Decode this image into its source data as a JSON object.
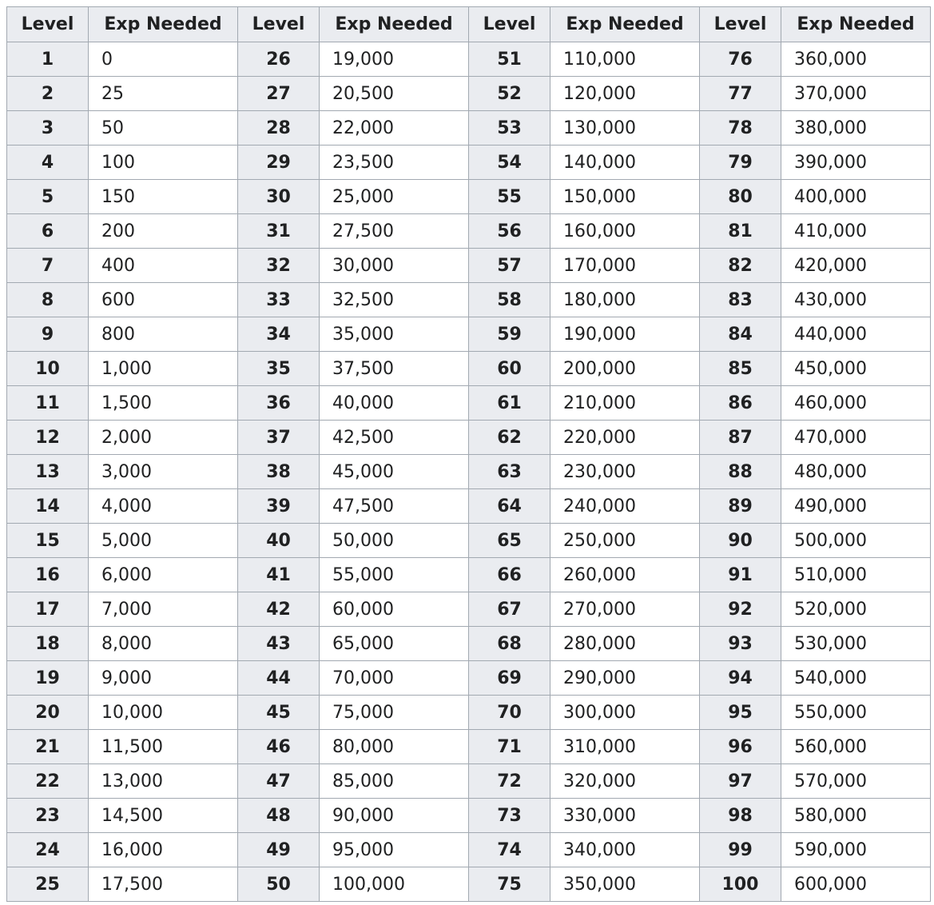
{
  "table": {
    "headers": [
      "Level",
      "Exp Needed",
      "Level",
      "Exp Needed",
      "Level",
      "Exp Needed",
      "Level",
      "Exp Needed"
    ],
    "rows": [
      [
        "1",
        "0",
        "26",
        "19,000",
        "51",
        "110,000",
        "76",
        "360,000"
      ],
      [
        "2",
        "25",
        "27",
        "20,500",
        "52",
        "120,000",
        "77",
        "370,000"
      ],
      [
        "3",
        "50",
        "28",
        "22,000",
        "53",
        "130,000",
        "78",
        "380,000"
      ],
      [
        "4",
        "100",
        "29",
        "23,500",
        "54",
        "140,000",
        "79",
        "390,000"
      ],
      [
        "5",
        "150",
        "30",
        "25,000",
        "55",
        "150,000",
        "80",
        "400,000"
      ],
      [
        "6",
        "200",
        "31",
        "27,500",
        "56",
        "160,000",
        "81",
        "410,000"
      ],
      [
        "7",
        "400",
        "32",
        "30,000",
        "57",
        "170,000",
        "82",
        "420,000"
      ],
      [
        "8",
        "600",
        "33",
        "32,500",
        "58",
        "180,000",
        "83",
        "430,000"
      ],
      [
        "9",
        "800",
        "34",
        "35,000",
        "59",
        "190,000",
        "84",
        "440,000"
      ],
      [
        "10",
        "1,000",
        "35",
        "37,500",
        "60",
        "200,000",
        "85",
        "450,000"
      ],
      [
        "11",
        "1,500",
        "36",
        "40,000",
        "61",
        "210,000",
        "86",
        "460,000"
      ],
      [
        "12",
        "2,000",
        "37",
        "42,500",
        "62",
        "220,000",
        "87",
        "470,000"
      ],
      [
        "13",
        "3,000",
        "38",
        "45,000",
        "63",
        "230,000",
        "88",
        "480,000"
      ],
      [
        "14",
        "4,000",
        "39",
        "47,500",
        "64",
        "240,000",
        "89",
        "490,000"
      ],
      [
        "15",
        "5,000",
        "40",
        "50,000",
        "65",
        "250,000",
        "90",
        "500,000"
      ],
      [
        "16",
        "6,000",
        "41",
        "55,000",
        "66",
        "260,000",
        "91",
        "510,000"
      ],
      [
        "17",
        "7,000",
        "42",
        "60,000",
        "67",
        "270,000",
        "92",
        "520,000"
      ],
      [
        "18",
        "8,000",
        "43",
        "65,000",
        "68",
        "280,000",
        "93",
        "530,000"
      ],
      [
        "19",
        "9,000",
        "44",
        "70,000",
        "69",
        "290,000",
        "94",
        "540,000"
      ],
      [
        "20",
        "10,000",
        "45",
        "75,000",
        "70",
        "300,000",
        "95",
        "550,000"
      ],
      [
        "21",
        "11,500",
        "46",
        "80,000",
        "71",
        "310,000",
        "96",
        "560,000"
      ],
      [
        "22",
        "13,000",
        "47",
        "85,000",
        "72",
        "320,000",
        "97",
        "570,000"
      ],
      [
        "23",
        "14,500",
        "48",
        "90,000",
        "73",
        "330,000",
        "98",
        "580,000"
      ],
      [
        "24",
        "16,000",
        "49",
        "95,000",
        "74",
        "340,000",
        "99",
        "590,000"
      ],
      [
        "25",
        "17,500",
        "50",
        "100,000",
        "75",
        "350,000",
        "100",
        "600,000"
      ]
    ]
  },
  "colors": {
    "header_bg": "#eaecf0",
    "border": "#a2a9b1",
    "text": "#202122",
    "cell_bg": "#ffffff"
  }
}
